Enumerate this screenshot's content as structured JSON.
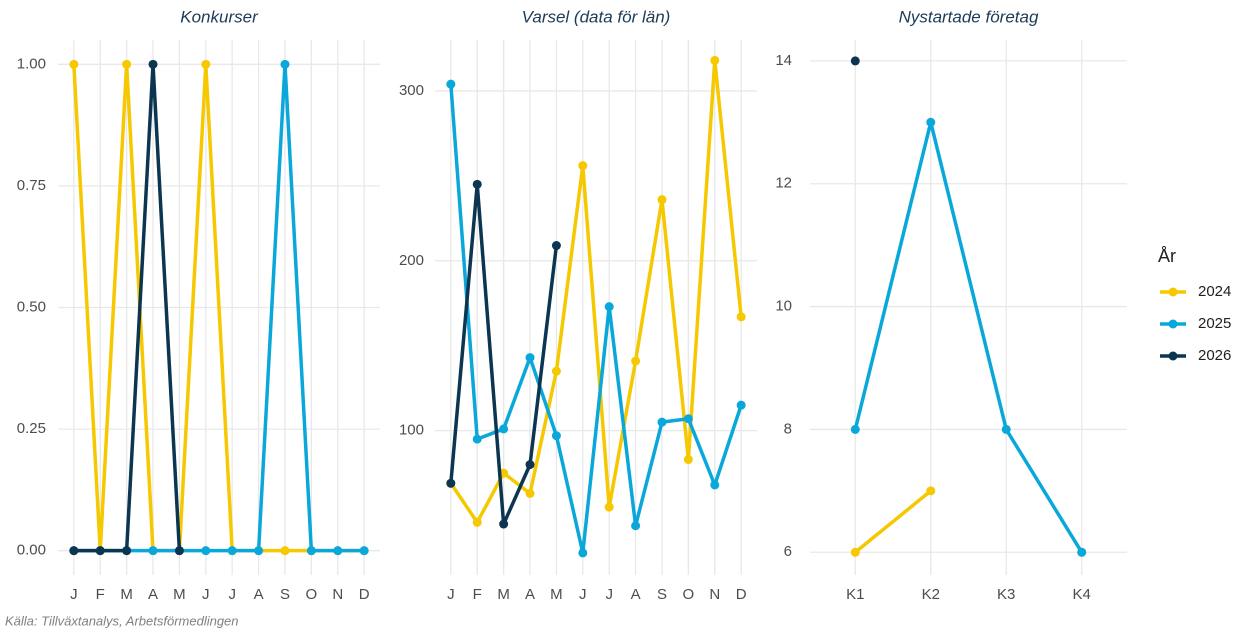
{
  "chart_data": [
    {
      "type": "line",
      "title": "Konkurser",
      "categories": [
        "J",
        "F",
        "M",
        "A",
        "M",
        "J",
        "J",
        "A",
        "S",
        "O",
        "N",
        "D"
      ],
      "series": [
        {
          "name": "2024",
          "color": "#f5c800",
          "values": [
            1,
            0,
            1,
            0,
            0,
            1,
            0,
            0,
            0,
            0,
            0,
            0
          ]
        },
        {
          "name": "2025",
          "color": "#0aa8da",
          "values": [
            0,
            0,
            0,
            0,
            0,
            0,
            0,
            0,
            1,
            0,
            0,
            0
          ]
        },
        {
          "name": "2026",
          "color": "#0b3550",
          "values": [
            0,
            0,
            0,
            1,
            0,
            null,
            null,
            null,
            null,
            null,
            null,
            null
          ]
        }
      ],
      "ylim": [
        -0.05,
        1.05
      ],
      "yticks": [
        {
          "value": 0,
          "label": "0.00"
        },
        {
          "value": 0.25,
          "label": "0.25"
        },
        {
          "value": 0.5,
          "label": "0.50"
        },
        {
          "value": 0.75,
          "label": "0.75"
        },
        {
          "value": 1,
          "label": "1.00"
        }
      ],
      "grid": true
    },
    {
      "type": "line",
      "title": "Varsel (data för län)",
      "categories": [
        "J",
        "F",
        "M",
        "A",
        "M",
        "J",
        "J",
        "A",
        "S",
        "O",
        "N",
        "D"
      ],
      "series": [
        {
          "name": "2024",
          "color": "#f5c800",
          "values": [
            69,
            46,
            75,
            63,
            135,
            256,
            55,
            141,
            236,
            83,
            318,
            167
          ]
        },
        {
          "name": "2025",
          "color": "#0aa8da",
          "values": [
            304,
            95,
            101,
            143,
            97,
            28,
            173,
            44,
            105,
            107,
            68,
            115
          ]
        },
        {
          "name": "2026",
          "color": "#0b3550",
          "values": [
            69,
            245,
            45,
            80,
            209,
            null,
            null,
            null,
            null,
            null,
            null,
            null
          ]
        }
      ],
      "ylim": [
        15,
        330
      ],
      "yticks": [
        100,
        200,
        300
      ],
      "grid": true
    },
    {
      "type": "line",
      "title": "Nystartade företag",
      "categories": [
        "K1",
        "K2",
        "K3",
        "K4"
      ],
      "series": [
        {
          "name": "2024",
          "color": "#f5c800",
          "values": [
            6,
            7,
            null,
            6
          ]
        },
        {
          "name": "2025",
          "color": "#0aa8da",
          "values": [
            8,
            13,
            8,
            6
          ]
        },
        {
          "name": "2026",
          "color": "#0b3550",
          "values": [
            14,
            null,
            null,
            null
          ]
        }
      ],
      "ylim": [
        5.63,
        14.34
      ],
      "yticks": [
        6,
        8,
        10,
        12,
        14
      ],
      "grid": true
    }
  ],
  "legend": {
    "title": "År",
    "position": "right"
  },
  "caption": "Källa: Tillväxtanalys, Arbetsförmedlingen"
}
